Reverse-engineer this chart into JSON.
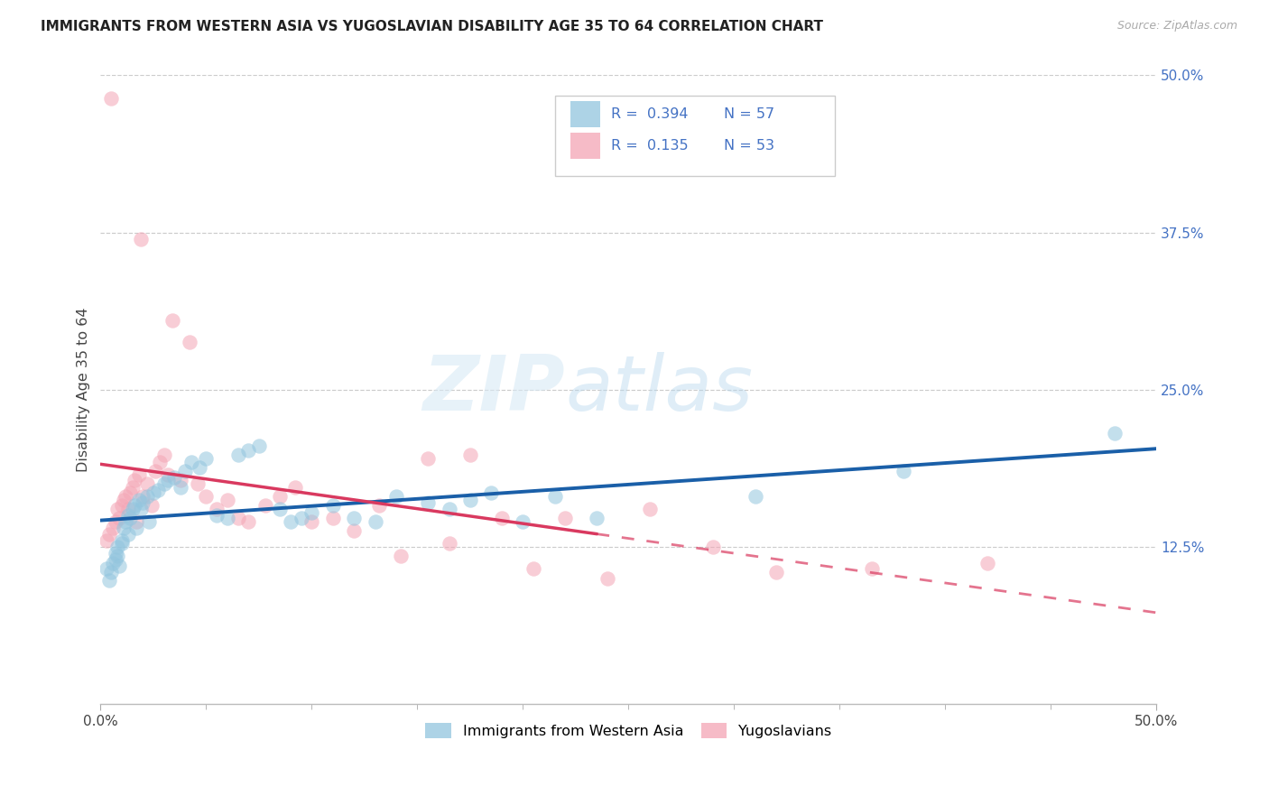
{
  "title": "IMMIGRANTS FROM WESTERN ASIA VS YUGOSLAVIAN DISABILITY AGE 35 TO 64 CORRELATION CHART",
  "source": "Source: ZipAtlas.com",
  "ylabel": "Disability Age 35 to 64",
  "xlim": [
    0.0,
    0.5
  ],
  "ylim": [
    0.0,
    0.5
  ],
  "xtick_vals": [
    0.0,
    0.5
  ],
  "ytick_vals_right": [
    0.125,
    0.25,
    0.375,
    0.5
  ],
  "legend1_label": "Immigrants from Western Asia",
  "legend2_label": "Yugoslavians",
  "R1": 0.394,
  "N1": 57,
  "R2": 0.135,
  "N2": 53,
  "color_blue": "#92c5de",
  "color_pink": "#f4a5b5",
  "color_blue_line": "#1a5fa8",
  "color_pink_line": "#d9395f",
  "watermark_zip": "ZIP",
  "watermark_atlas": "atlas",
  "blue_scatter_x": [
    0.003,
    0.004,
    0.005,
    0.006,
    0.007,
    0.007,
    0.008,
    0.008,
    0.009,
    0.01,
    0.01,
    0.011,
    0.012,
    0.013,
    0.013,
    0.014,
    0.015,
    0.016,
    0.017,
    0.018,
    0.019,
    0.02,
    0.022,
    0.023,
    0.025,
    0.027,
    0.03,
    0.032,
    0.035,
    0.038,
    0.04,
    0.043,
    0.047,
    0.05,
    0.055,
    0.06,
    0.065,
    0.07,
    0.075,
    0.085,
    0.09,
    0.095,
    0.1,
    0.11,
    0.12,
    0.13,
    0.14,
    0.155,
    0.165,
    0.175,
    0.185,
    0.2,
    0.215,
    0.235,
    0.31,
    0.38,
    0.48
  ],
  "blue_scatter_y": [
    0.108,
    0.098,
    0.105,
    0.112,
    0.115,
    0.12,
    0.118,
    0.125,
    0.11,
    0.13,
    0.128,
    0.14,
    0.145,
    0.15,
    0.135,
    0.148,
    0.155,
    0.158,
    0.14,
    0.162,
    0.155,
    0.16,
    0.165,
    0.145,
    0.168,
    0.17,
    0.175,
    0.178,
    0.18,
    0.172,
    0.185,
    0.192,
    0.188,
    0.195,
    0.15,
    0.148,
    0.198,
    0.202,
    0.205,
    0.155,
    0.145,
    0.148,
    0.152,
    0.158,
    0.148,
    0.145,
    0.165,
    0.16,
    0.155,
    0.162,
    0.168,
    0.145,
    0.165,
    0.148,
    0.165,
    0.185,
    0.215
  ],
  "pink_scatter_x": [
    0.003,
    0.004,
    0.005,
    0.006,
    0.007,
    0.008,
    0.009,
    0.01,
    0.011,
    0.012,
    0.013,
    0.014,
    0.015,
    0.016,
    0.017,
    0.018,
    0.019,
    0.02,
    0.022,
    0.024,
    0.026,
    0.028,
    0.03,
    0.032,
    0.034,
    0.038,
    0.042,
    0.046,
    0.05,
    0.055,
    0.06,
    0.065,
    0.07,
    0.078,
    0.085,
    0.092,
    0.1,
    0.11,
    0.12,
    0.132,
    0.142,
    0.155,
    0.165,
    0.175,
    0.19,
    0.205,
    0.22,
    0.24,
    0.26,
    0.29,
    0.32,
    0.365,
    0.42
  ],
  "pink_scatter_y": [
    0.13,
    0.135,
    0.482,
    0.14,
    0.145,
    0.155,
    0.148,
    0.158,
    0.162,
    0.165,
    0.155,
    0.168,
    0.172,
    0.178,
    0.145,
    0.182,
    0.37,
    0.165,
    0.175,
    0.158,
    0.185,
    0.192,
    0.198,
    0.182,
    0.305,
    0.178,
    0.288,
    0.175,
    0.165,
    0.155,
    0.162,
    0.148,
    0.145,
    0.158,
    0.165,
    0.172,
    0.145,
    0.148,
    0.138,
    0.158,
    0.118,
    0.195,
    0.128,
    0.198,
    0.148,
    0.108,
    0.148,
    0.1,
    0.155,
    0.125,
    0.105,
    0.108,
    0.112
  ]
}
